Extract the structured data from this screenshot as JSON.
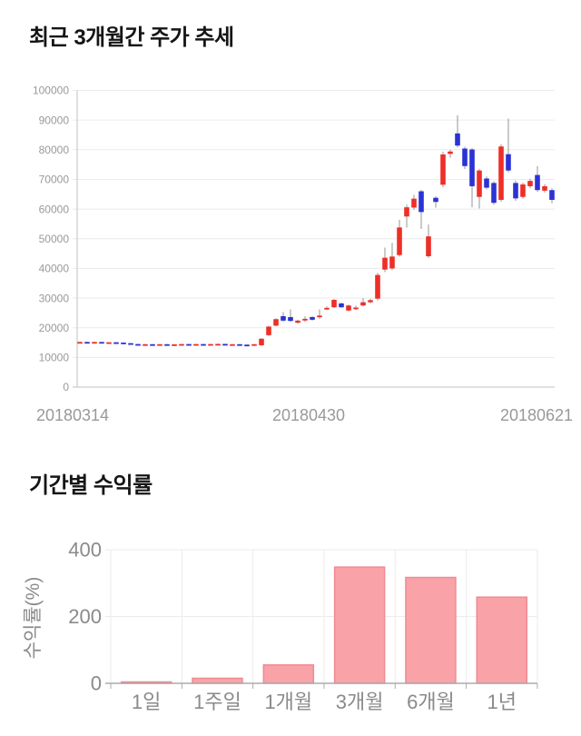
{
  "page": {
    "background": "#ffffff"
  },
  "price_section": {
    "title": "최근 3개월간 주가 추세",
    "chart_data": {
      "type": "candlestick",
      "title": "최근 3개월간 주가 추세",
      "ylim": [
        0,
        100000
      ],
      "y_ticks": [
        0,
        10000,
        20000,
        30000,
        40000,
        50000,
        60000,
        70000,
        80000,
        90000,
        100000
      ],
      "x_tick_labels": [
        "20180314",
        "20180430",
        "20180621"
      ],
      "grid": true,
      "up_color": "#ee2f28",
      "down_color": "#2b33d5",
      "wick_color": "#959595",
      "candle_format": "[open, high, low, close]",
      "candles": [
        [
          15000,
          15300,
          14900,
          15200
        ],
        [
          15200,
          15300,
          15000,
          15100
        ],
        [
          15100,
          15300,
          15000,
          15200
        ],
        [
          15200,
          15250,
          14950,
          15000
        ],
        [
          15000,
          15200,
          14950,
          15100
        ],
        [
          15100,
          15150,
          14900,
          15000
        ],
        [
          15000,
          15050,
          14700,
          14800
        ],
        [
          14800,
          14850,
          14300,
          14500
        ],
        [
          14500,
          14600,
          14200,
          14350
        ],
        [
          14350,
          14550,
          14250,
          14450
        ],
        [
          14450,
          14500,
          14250,
          14350
        ],
        [
          14350,
          14500,
          14300,
          14450
        ],
        [
          14450,
          14500,
          14100,
          14300
        ],
        [
          14300,
          14500,
          14250,
          14400
        ],
        [
          14400,
          14550,
          14300,
          14500
        ],
        [
          14500,
          14550,
          14300,
          14400
        ],
        [
          14400,
          14600,
          14350,
          14500
        ],
        [
          14500,
          14550,
          14300,
          14400
        ],
        [
          14400,
          14550,
          14350,
          14500
        ],
        [
          14500,
          14650,
          14400,
          14550
        ],
        [
          14550,
          14600,
          14250,
          14350
        ],
        [
          14350,
          14500,
          14300,
          14450
        ],
        [
          14450,
          14500,
          14000,
          14300
        ],
        [
          14300,
          14400,
          13900,
          14250
        ],
        [
          14250,
          14500,
          14200,
          14450
        ],
        [
          14100,
          16500,
          13900,
          16300
        ],
        [
          17500,
          20600,
          17200,
          20400
        ],
        [
          20700,
          23200,
          20500,
          22900
        ],
        [
          23900,
          25300,
          22100,
          22400
        ],
        [
          23600,
          26200,
          22000,
          22300
        ],
        [
          21700,
          22700,
          21400,
          22400
        ],
        [
          22700,
          23800,
          22000,
          23000
        ],
        [
          23600,
          23900,
          22400,
          22700
        ],
        [
          23800,
          26200,
          23000,
          24100
        ],
        [
          26500,
          27200,
          25900,
          26700
        ],
        [
          26900,
          29700,
          26600,
          29400
        ],
        [
          28200,
          28500,
          26600,
          26900
        ],
        [
          25800,
          27800,
          25500,
          27500
        ],
        [
          26600,
          27500,
          26000,
          26800
        ],
        [
          27500,
          30000,
          27200,
          28600
        ],
        [
          28600,
          29800,
          28200,
          29300
        ],
        [
          29800,
          38500,
          29200,
          37800
        ],
        [
          39600,
          47000,
          38800,
          43600
        ],
        [
          40000,
          48600,
          39400,
          44000
        ],
        [
          44500,
          56400,
          44000,
          53800
        ],
        [
          57500,
          61500,
          53800,
          60600
        ],
        [
          60500,
          64800,
          59800,
          63500
        ],
        [
          66000,
          66500,
          53300,
          59000
        ],
        [
          44100,
          54800,
          43500,
          50800
        ],
        [
          63800,
          64300,
          60500,
          62400
        ],
        [
          68200,
          79300,
          67400,
          78400
        ],
        [
          78600,
          80000,
          77300,
          79400
        ],
        [
          85500,
          91600,
          80800,
          81400
        ],
        [
          80400,
          81000,
          73500,
          74500
        ],
        [
          80100,
          80600,
          60600,
          67700
        ],
        [
          64100,
          73600,
          60200,
          73000
        ],
        [
          70300,
          71000,
          66600,
          67200
        ],
        [
          68800,
          69400,
          61500,
          62100
        ],
        [
          63100,
          81800,
          62500,
          81100
        ],
        [
          78500,
          90500,
          72400,
          73000
        ],
        [
          68800,
          69600,
          62800,
          63600
        ],
        [
          64100,
          68900,
          63500,
          68300
        ],
        [
          67700,
          70200,
          67000,
          69500
        ],
        [
          71500,
          74500,
          65800,
          66400
        ],
        [
          66200,
          68400,
          65600,
          67700
        ],
        [
          66400,
          67000,
          62000,
          63100
        ]
      ]
    }
  },
  "returns_section": {
    "title": "기간별 수익률",
    "chart_data": {
      "type": "bar",
      "categories": [
        "1일",
        "1주일",
        "1개월",
        "3개월",
        "6개월",
        "1년"
      ],
      "values": [
        2,
        15,
        55,
        348,
        317,
        258
      ],
      "ylabel": "수익률(%)",
      "ylim": [
        0,
        400
      ],
      "y_ticks": [
        0,
        200,
        400
      ],
      "grid": true,
      "legend": "none",
      "bar_color": "#f9a2a8",
      "bar_border_color": "#ef8b93"
    }
  },
  "axis_style": {
    "tick_label_color": "#999999",
    "returns_tick_label_color": "#8a8a8a",
    "grid_color": "#ebebeb",
    "axis_line_color": "#c2c2c2",
    "returns_axis_line_color": "#ababab"
  }
}
